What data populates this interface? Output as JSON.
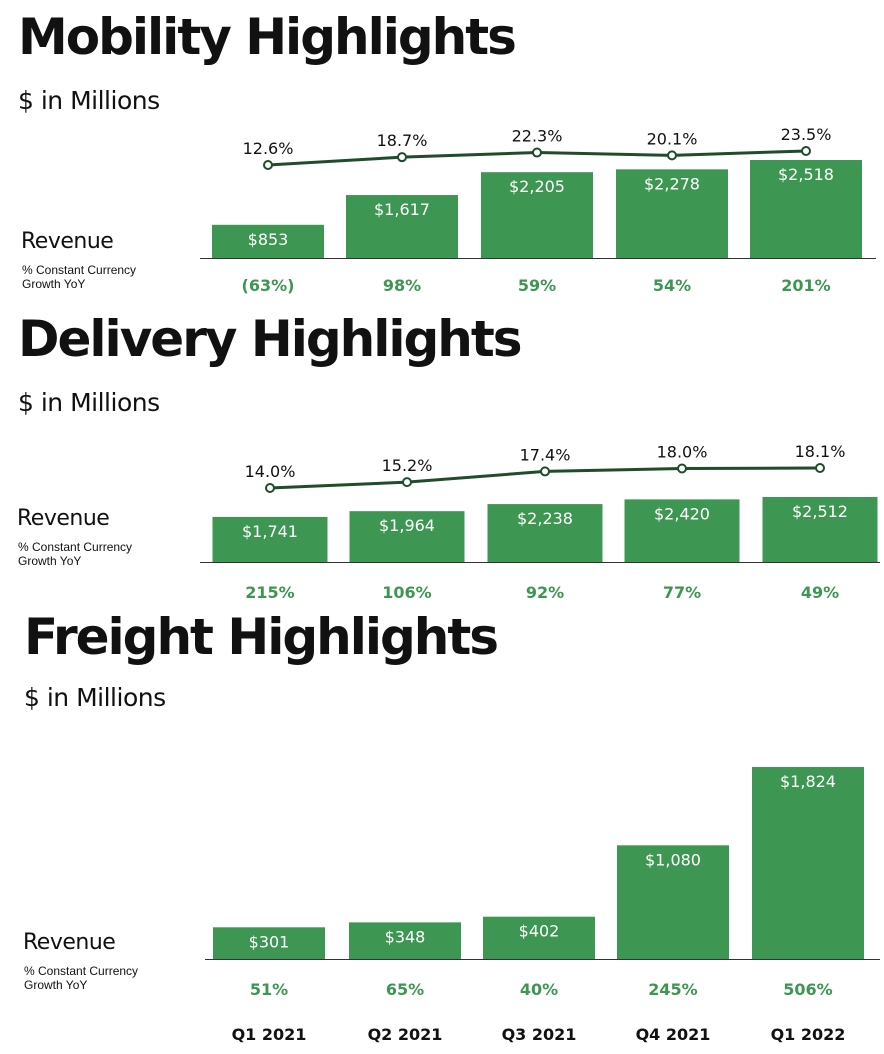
{
  "sections": {
    "mobility": {
      "title": "Mobility Highlights",
      "subtitle": "$ in Millions",
      "revenue_label": "Revenue",
      "growth_label": "% Constant Currency\nGrowth YoY"
    },
    "delivery": {
      "title": "Delivery Highlights",
      "subtitle": "$ in Millions",
      "revenue_label": "Revenue",
      "growth_label": "% Constant Currency\nGrowth YoY"
    },
    "freight": {
      "title": "Freight Highlights",
      "subtitle": "$ in Millions",
      "revenue_label": "Revenue",
      "growth_label": "% Constant Currency\nGrowth YoY"
    }
  },
  "colors": {
    "bar": "#3d9651",
    "line": "#1f4d2c",
    "growth_text": "#3d9651"
  },
  "chart_data": [
    {
      "type": "bar",
      "title": "Mobility Highlights",
      "subtitle": "$ in Millions",
      "categories": [
        "Q1 2021",
        "Q2 2021",
        "Q3 2021",
        "Q4 2021",
        "Q1 2022"
      ],
      "series": [
        {
          "name": "Revenue",
          "values": [
            853,
            1617,
            2205,
            2278,
            2518
          ],
          "labels": [
            "$853",
            "$1,617",
            "$2,205",
            "$2,278",
            "$2,518"
          ]
        }
      ],
      "growth": [
        "(63%)",
        "98%",
        "59%",
        "54%",
        "201%"
      ],
      "line_values": [
        12.6,
        18.7,
        22.3,
        20.1,
        23.5
      ],
      "line_labels": [
        "12.6%",
        "18.7%",
        "22.3%",
        "20.1%",
        "23.5%"
      ],
      "ylim": [
        0,
        2518
      ]
    },
    {
      "type": "bar",
      "title": "Delivery Highlights",
      "subtitle": "$ in Millions",
      "categories": [
        "Q1 2021",
        "Q2 2021",
        "Q3 2021",
        "Q4 2021",
        "Q1 2022"
      ],
      "series": [
        {
          "name": "Revenue",
          "values": [
            1741,
            1964,
            2238,
            2420,
            2512
          ],
          "labels": [
            "$1,741",
            "$1,964",
            "$2,238",
            "$2,420",
            "$2,512"
          ]
        }
      ],
      "growth": [
        "215%",
        "106%",
        "92%",
        "77%",
        "49%"
      ],
      "line_values": [
        14.0,
        15.2,
        17.4,
        18.0,
        18.1
      ],
      "line_labels": [
        "14.0%",
        "15.2%",
        "17.4%",
        "18.0%",
        "18.1%"
      ],
      "ylim": [
        0,
        2512
      ]
    },
    {
      "type": "bar",
      "title": "Freight Highlights",
      "subtitle": "$ in Millions",
      "categories": [
        "Q1 2021",
        "Q2 2021",
        "Q3 2021",
        "Q4 2021",
        "Q1 2022"
      ],
      "series": [
        {
          "name": "Revenue",
          "values": [
            301,
            348,
            402,
            1080,
            1824
          ],
          "labels": [
            "$301",
            "$348",
            "$402",
            "$1,080",
            "$1,824"
          ]
        }
      ],
      "growth": [
        "51%",
        "65%",
        "40%",
        "245%",
        "506%"
      ],
      "ylim": [
        0,
        1824
      ]
    }
  ]
}
